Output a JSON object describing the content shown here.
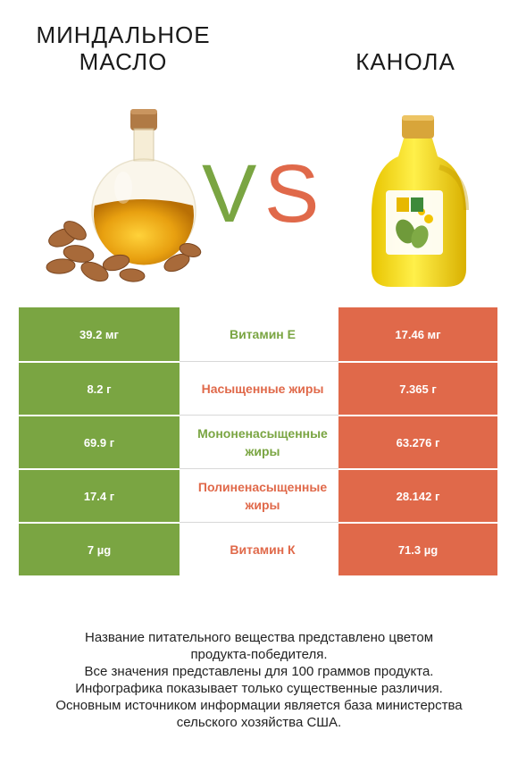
{
  "left_product": {
    "title_line1": "МИНДАЛЬНОЕ",
    "title_line2": "МАСЛО"
  },
  "right_product": {
    "title": "КАНОЛА"
  },
  "vs": {
    "v": "V",
    "s": "S",
    "v_color": "#7aa542",
    "s_color": "#e0694a"
  },
  "colors": {
    "left": "#7aa542",
    "right": "#e0694a"
  },
  "chart_data": {
    "type": "table",
    "columns": [
      "МИНДАЛЬНОЕ МАСЛО",
      "",
      "КАНОЛА"
    ],
    "rows": [
      {
        "nutrient": "Витамин E",
        "left": "39.2 мг",
        "right": "17.46 мг",
        "winner": "left"
      },
      {
        "nutrient": "Насыщенные жиры",
        "left": "8.2 г",
        "right": "7.365 г",
        "winner": "right"
      },
      {
        "nutrient": "Мононенасыщенные жиры",
        "left": "69.9 г",
        "right": "63.276 г",
        "winner": "left"
      },
      {
        "nutrient": "Полиненасыщенные жиры",
        "left": "17.4 г",
        "right": "28.142 г",
        "winner": "right"
      },
      {
        "nutrient": "Витамин К",
        "left": "7 µg",
        "right": "71.3 µg",
        "winner": "right"
      }
    ]
  },
  "footer": {
    "line1": "Название питательного вещества представлено цветом",
    "line2": "продукта-победителя.",
    "line3": "Все значения представлены для 100 граммов продукта.",
    "line4": "Инфографика показывает только существенные различия.",
    "line5": "Основным источником информации является база министерства",
    "line6": "сельского хозяйства США."
  }
}
